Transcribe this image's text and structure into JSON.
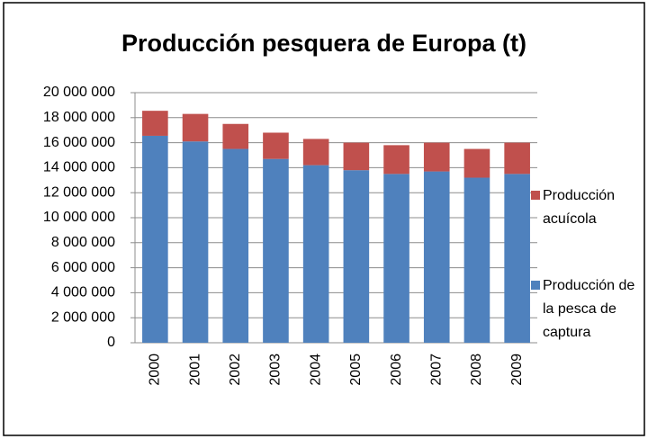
{
  "chart_data": {
    "type": "bar",
    "stacked": true,
    "title": "Producción pesquera de Europa (t)",
    "categories": [
      "2000",
      "2001",
      "2002",
      "2003",
      "2004",
      "2005",
      "2006",
      "2007",
      "2008",
      "2009"
    ],
    "series": [
      {
        "name": "Producción de la pesca de captura",
        "color": "#4f81bd",
        "values": [
          16550000,
          16100000,
          15500000,
          14700000,
          14200000,
          13800000,
          13500000,
          13700000,
          13200000,
          13500000
        ]
      },
      {
        "name": "Producción acuícola",
        "color": "#c0504d",
        "values": [
          2000000,
          2200000,
          2000000,
          2100000,
          2100000,
          2200000,
          2300000,
          2300000,
          2300000,
          2500000
        ]
      }
    ],
    "ylim": [
      0,
      20000000
    ],
    "yticks": [
      0,
      {
        "value": 2000000,
        "label": "2 000 000"
      },
      {
        "value": 4000000,
        "label": "4 000 000"
      },
      {
        "value": 6000000,
        "label": "6 000 000"
      },
      {
        "value": 8000000,
        "label": "8 000 000"
      },
      {
        "value": 10000000,
        "label": "10 000 000"
      },
      {
        "value": 12000000,
        "label": "12 000 000"
      },
      {
        "value": 14000000,
        "label": "14 000 000"
      },
      {
        "value": 16000000,
        "label": "16 000 000"
      },
      {
        "value": 18000000,
        "label": "18 000 000"
      },
      {
        "value": 20000000,
        "label": "20 000 000"
      }
    ],
    "grid": true,
    "legend": "right"
  }
}
